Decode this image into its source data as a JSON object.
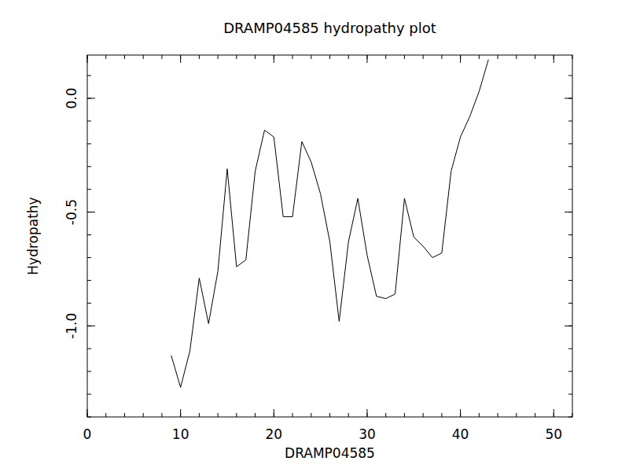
{
  "chart_data": {
    "type": "line",
    "title": "DRAMP04585 hydropathy plot",
    "x_label": "DRAMP04585",
    "y_label": "Hydropathy",
    "x": [
      9,
      10,
      11,
      12,
      13,
      14,
      15,
      16,
      17,
      18,
      19,
      20,
      21,
      22,
      23,
      24,
      25,
      26,
      27,
      28,
      29,
      30,
      31,
      32,
      33,
      34,
      35,
      36,
      37,
      38,
      39,
      40,
      41,
      42,
      43
    ],
    "values": [
      -1.13,
      -1.27,
      -1.11,
      -0.79,
      -0.99,
      -0.76,
      -0.31,
      -0.74,
      -0.71,
      -0.32,
      -0.14,
      -0.17,
      -0.52,
      -0.52,
      -0.19,
      -0.28,
      -0.42,
      -0.63,
      -0.98,
      -0.63,
      -0.44,
      -0.69,
      -0.87,
      -0.88,
      -0.86,
      -0.44,
      -0.61,
      -0.65,
      -0.7,
      -0.68,
      -0.32,
      -0.17,
      -0.08,
      0.03,
      0.17
    ],
    "color": "#000000",
    "xlim": [
      0,
      52
    ],
    "xticks": [
      0,
      10,
      20,
      30,
      40,
      50
    ],
    "ylim": [
      -1.4,
      0.19
    ],
    "yticks": [
      {
        "value": -1,
        "label": "-1.0"
      },
      {
        "value": -0.5,
        "label": "-0.5"
      },
      {
        "value": 0,
        "label": "0.0"
      }
    ],
    "grid": false
  }
}
